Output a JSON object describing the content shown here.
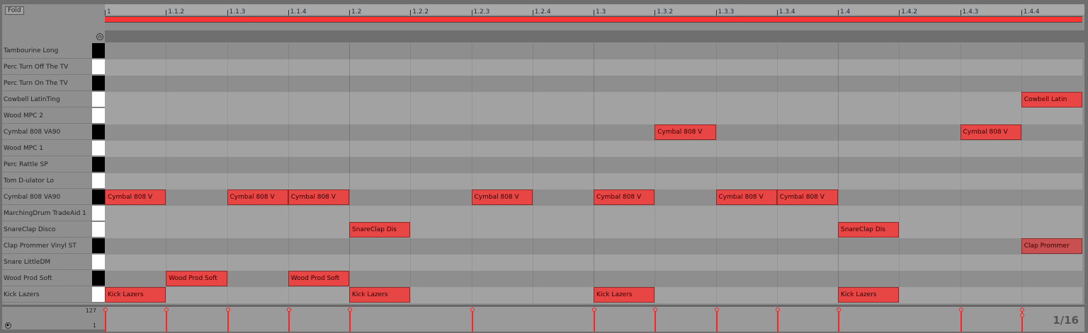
{
  "header": {
    "fold_label": "Fold",
    "headphones_icon": "headphones-icon"
  },
  "ruler": {
    "ticks": [
      "1",
      "1.1.2",
      "1.1.3",
      "1.1.4",
      "1.2",
      "1.2.2",
      "1.2.3",
      "1.2.4",
      "1.3",
      "1.3.2",
      "1.3.3",
      "1.3.4",
      "1.4",
      "1.4.2",
      "1.4.3",
      "1.4.4"
    ]
  },
  "colors": {
    "note": "#e84545",
    "loop": "#ff3333",
    "velocity": "#ff2222"
  },
  "rows": [
    {
      "label": "Tambourine Long",
      "key": "black"
    },
    {
      "label": "Perc Turn Off The TV",
      "key": "white"
    },
    {
      "label": "Perc Turn On The TV",
      "key": "black"
    },
    {
      "label": "Cowbell LatinTing",
      "key": "white"
    },
    {
      "label": "Wood MPC 2",
      "key": "white"
    },
    {
      "label": "Cymbal 808 VA90",
      "key": "black"
    },
    {
      "label": "Wood MPC 1",
      "key": "white"
    },
    {
      "label": "Perc Rattle SP",
      "key": "black"
    },
    {
      "label": "Tom D-ulator Lo",
      "key": "white"
    },
    {
      "label": "Cymbal 808 VA90",
      "key": "black"
    },
    {
      "label": "MarchingDrum TradeAid 1",
      "key": "white"
    },
    {
      "label": "SnareClap Disco",
      "key": "white"
    },
    {
      "label": "Clap Prommer Vinyl ST",
      "key": "black"
    },
    {
      "label": "Snare LittleDM",
      "key": "white"
    },
    {
      "label": "Wood Prod Soft",
      "key": "black"
    },
    {
      "label": "Kick Lazers",
      "key": "white"
    }
  ],
  "notes": [
    {
      "row": 3,
      "step": 15,
      "label": "Cowbell Latin"
    },
    {
      "row": 5,
      "step": 9,
      "label": "Cymbal 808 V"
    },
    {
      "row": 5,
      "step": 14,
      "label": "Cymbal 808 V"
    },
    {
      "row": 9,
      "step": 0,
      "label": "Cymbal 808 V"
    },
    {
      "row": 9,
      "step": 2,
      "label": "Cymbal 808 V"
    },
    {
      "row": 9,
      "step": 3,
      "label": "Cymbal 808 V"
    },
    {
      "row": 9,
      "step": 6,
      "label": "Cymbal 808 V"
    },
    {
      "row": 9,
      "step": 8,
      "label": "Cymbal 808 V"
    },
    {
      "row": 9,
      "step": 10,
      "label": "Cymbal 808 V"
    },
    {
      "row": 9,
      "step": 11,
      "label": "Cymbal 808 V"
    },
    {
      "row": 11,
      "step": 4,
      "label": "SnareClap Dis"
    },
    {
      "row": 11,
      "step": 12,
      "label": "SnareClap Dis"
    },
    {
      "row": 12,
      "step": 15,
      "label": "Clap Prommer",
      "velocity": 90
    },
    {
      "row": 14,
      "step": 1,
      "label": "Wood Prod Soft"
    },
    {
      "row": 14,
      "step": 3,
      "label": "Wood Prod Soft"
    },
    {
      "row": 15,
      "step": 0,
      "label": "Kick Lazers"
    },
    {
      "row": 15,
      "step": 4,
      "label": "Kick Lazers"
    },
    {
      "row": 15,
      "step": 8,
      "label": "Kick Lazers"
    },
    {
      "row": 15,
      "step": 12,
      "label": "Kick Lazers"
    }
  ],
  "velocity": {
    "max_label": "127",
    "min_label": "1"
  },
  "grid": {
    "quantization": "1/16"
  }
}
